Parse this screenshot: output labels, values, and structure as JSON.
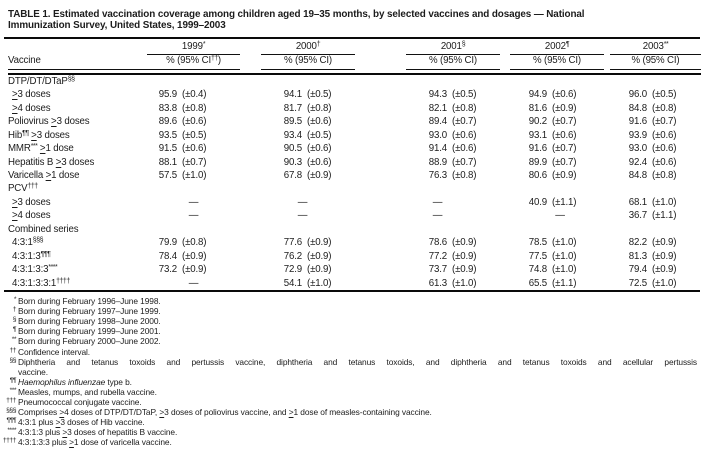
{
  "colors": {
    "background": "#ffffff",
    "text": "#1c1c1c",
    "rule": "#000000"
  },
  "title": {
    "line1": "TABLE 1. Estimated vaccination coverage among children aged 19–35 months, by selected vaccines and dosages — National",
    "line2": "Immunization Survey, United States, 1999–2003"
  },
  "table": {
    "vaccine_header": "Vaccine",
    "no_data": "—",
    "years": [
      {
        "label": "1999",
        "marker": "*",
        "subheader": {
          "pre": "% (95% CI",
          "sup": "††",
          "post": ")"
        }
      },
      {
        "label": "2000",
        "marker": "†",
        "subheader": {
          "pre": "% (95% CI)"
        }
      },
      {
        "label": "2001",
        "marker": "§",
        "subheader": {
          "pre": "% (95% CI)"
        }
      },
      {
        "label": "2002",
        "marker": "¶",
        "subheader": {
          "pre": "% (95% CI)"
        }
      },
      {
        "label": "2003",
        "marker": "**",
        "subheader": {
          "pre": "% (95% CI)"
        }
      }
    ],
    "rows": [
      {
        "type": "section",
        "pre": "DTP/DT/DTaP",
        "sup": "§§"
      },
      {
        "type": "data",
        "indent": 1,
        "pre": "≥3 doses",
        "values": [
          [
            "95.9",
            "(±0.4)"
          ],
          [
            "94.1",
            "(±0.5)"
          ],
          [
            "94.3",
            "(±0.5)"
          ],
          [
            "94.9",
            "(±0.6)"
          ],
          [
            "96.0",
            "(±0.5)"
          ]
        ]
      },
      {
        "type": "data",
        "indent": 1,
        "pre": "≥4 doses",
        "values": [
          [
            "83.8",
            "(±0.8)"
          ],
          [
            "81.7",
            "(±0.8)"
          ],
          [
            "82.1",
            "(±0.8)"
          ],
          [
            "81.6",
            "(±0.9)"
          ],
          [
            "84.8",
            "(±0.8)"
          ]
        ]
      },
      {
        "type": "data",
        "pre": "Poliovirus ≥3 doses",
        "values": [
          [
            "89.6",
            "(±0.6)"
          ],
          [
            "89.5",
            "(±0.6)"
          ],
          [
            "89.4",
            "(±0.7)"
          ],
          [
            "90.2",
            "(±0.7)"
          ],
          [
            "91.6",
            "(±0.7)"
          ]
        ]
      },
      {
        "type": "data",
        "pre": "Hib",
        "sup": "¶¶",
        "post": " ≥3 doses",
        "values": [
          [
            "93.5",
            "(±0.5)"
          ],
          [
            "93.4",
            "(±0.5)"
          ],
          [
            "93.0",
            "(±0.6)"
          ],
          [
            "93.1",
            "(±0.6)"
          ],
          [
            "93.9",
            "(±0.6)"
          ]
        ]
      },
      {
        "type": "data",
        "pre": "MMR",
        "sup": "***",
        "post": " ≥1 dose",
        "values": [
          [
            "91.5",
            "(±0.6)"
          ],
          [
            "90.5",
            "(±0.6)"
          ],
          [
            "91.4",
            "(±0.6)"
          ],
          [
            "91.6",
            "(±0.7)"
          ],
          [
            "93.0",
            "(±0.6)"
          ]
        ]
      },
      {
        "type": "data",
        "pre": "Hepatitis B ≥3 doses",
        "values": [
          [
            "88.1",
            "(±0.7)"
          ],
          [
            "90.3",
            "(±0.6)"
          ],
          [
            "88.9",
            "(±0.7)"
          ],
          [
            "89.9",
            "(±0.7)"
          ],
          [
            "92.4",
            "(±0.6)"
          ]
        ]
      },
      {
        "type": "data",
        "pre": "Varicella ≥1 dose",
        "values": [
          [
            "57.5",
            "(±1.0)"
          ],
          [
            "67.8",
            "(±0.9)"
          ],
          [
            "76.3",
            "(±0.8)"
          ],
          [
            "80.6",
            "(±0.9)"
          ],
          [
            "84.8",
            "(±0.8)"
          ]
        ]
      },
      {
        "type": "section",
        "pre": "PCV",
        "sup": "†††"
      },
      {
        "type": "data",
        "indent": 1,
        "pre": "≥3 doses",
        "values": [
          null,
          null,
          null,
          [
            "40.9",
            "(±1.1)"
          ],
          [
            "68.1",
            "(±1.0)"
          ]
        ]
      },
      {
        "type": "data",
        "indent": 1,
        "pre": "≥4 doses",
        "values": [
          null,
          null,
          null,
          null,
          [
            "36.7",
            "(±1.1)"
          ]
        ]
      },
      {
        "type": "section",
        "pre": "Combined series"
      },
      {
        "type": "data",
        "indent": 1,
        "pre": "4:3:1",
        "sup": "§§§",
        "values": [
          [
            "79.9",
            "(±0.8)"
          ],
          [
            "77.6",
            "(±0.9)"
          ],
          [
            "78.6",
            "(±0.9)"
          ],
          [
            "78.5",
            "(±1.0)"
          ],
          [
            "82.2",
            "(±0.9)"
          ]
        ]
      },
      {
        "type": "data",
        "indent": 1,
        "pre": "4:3:1:3",
        "sup": "¶¶¶",
        "values": [
          [
            "78.4",
            "(±0.9)"
          ],
          [
            "76.2",
            "(±0.9)"
          ],
          [
            "77.2",
            "(±0.9)"
          ],
          [
            "77.5",
            "(±1.0)"
          ],
          [
            "81.3",
            "(±0.9)"
          ]
        ]
      },
      {
        "type": "data",
        "indent": 1,
        "pre": "4:3:1:3:3",
        "sup": "****",
        "values": [
          [
            "73.2",
            "(±0.9)"
          ],
          [
            "72.9",
            "(±0.9)"
          ],
          [
            "73.7",
            "(±0.9)"
          ],
          [
            "74.8",
            "(±1.0)"
          ],
          [
            "79.4",
            "(±0.9)"
          ]
        ]
      },
      {
        "type": "data",
        "indent": 1,
        "pre": "4:3:1:3:3:1",
        "sup": "††††",
        "values": [
          null,
          [
            "54.1",
            "(±1.0)"
          ],
          [
            "61.3",
            "(±1.0)"
          ],
          [
            "65.5",
            "(±1.1)"
          ],
          [
            "72.5",
            "(±1.0)"
          ]
        ]
      }
    ]
  },
  "footnotes": [
    {
      "marker": "*",
      "text": "Born during February 1996–June 1998."
    },
    {
      "marker": "†",
      "text": "Born during February 1997–June 1999."
    },
    {
      "marker": "§",
      "text": "Born during February 1998–June 2000."
    },
    {
      "marker": "¶",
      "text": "Born during February 1999–June 2001."
    },
    {
      "marker": "**",
      "text": "Born during February 2000–June 2002."
    },
    {
      "marker": "††",
      "text": "Confidence interval."
    },
    {
      "marker": "§§",
      "text": "Diphtheria and tetanus toxoids and pertussis vaccine, diphtheria and tetanus toxoids, and diphtheria and tetanus toxoids and acellular pertussis",
      "text2": "vaccine.",
      "justify": true
    },
    {
      "marker": "¶¶",
      "italic": "Haemophilus influenzae",
      "text": " type b."
    },
    {
      "marker": "***",
      "text": "Measles, mumps, and rubella vaccine."
    },
    {
      "marker": "†††",
      "text": "Pneumococcal conjugate vaccine."
    },
    {
      "marker": "§§§",
      "text": "Comprises ≥4 doses of DTP/DT/DTaP, ≥3 doses of poliovirus vaccine, and ≥1 dose of measles-containing vaccine."
    },
    {
      "marker": "¶¶¶",
      "text": "4:3:1 plus ≥3 doses of Hib vaccine."
    },
    {
      "marker": "****",
      "text": "4:3:1:3 plus ≥3 doses of hepatitis B vaccine."
    },
    {
      "marker": "††††",
      "text": "4:3:1:3:3 plus ≥1 dose of varicella vaccine."
    }
  ]
}
